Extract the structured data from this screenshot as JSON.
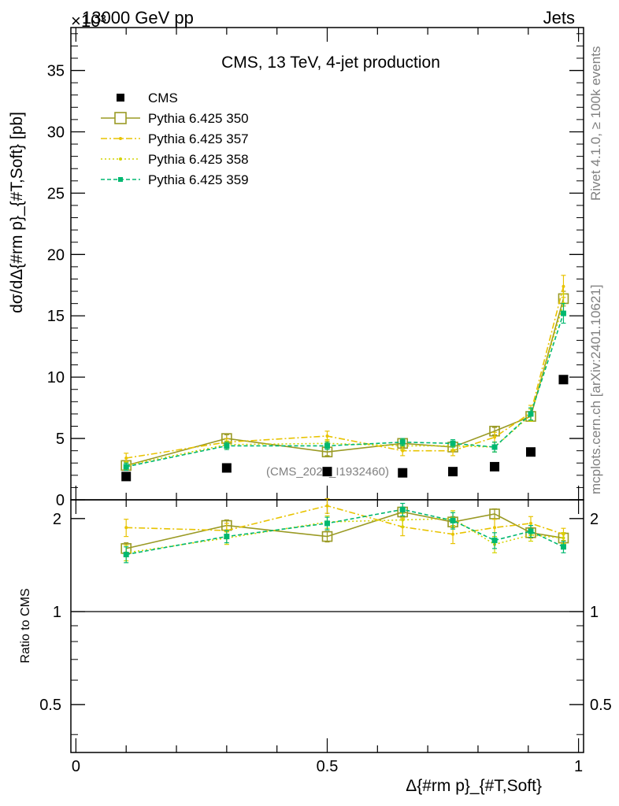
{
  "header": {
    "left": "13000 GeV pp",
    "right": "Jets",
    "exponent": "×10³",
    "source_label": "(CMS_2021_I1932460)",
    "side_top": "Rivet 4.1.0, ≥ 100k events",
    "side_bottom": "mcplots.cern.ch [arXiv:2401.10621]"
  },
  "chart_data": [
    {
      "type": "scatter",
      "panel": "main",
      "title": "CMS, 13 TeV, 4-jet production",
      "ylabel": "dσ/dΔ{#rm p}_{#T,Soft} [pb]",
      "y_exponent": "×10³",
      "xlim": [
        -0.01,
        1.01
      ],
      "ylim": [
        0,
        38.5
      ],
      "yticks": [
        0,
        5,
        10,
        15,
        20,
        25,
        30,
        35
      ],
      "x": [
        0.1,
        0.3,
        0.5,
        0.65,
        0.75,
        0.833,
        0.905,
        0.97
      ],
      "series": [
        {
          "name": "CMS",
          "style": "data",
          "color": "#000000",
          "values": [
            1.9,
            2.6,
            2.3,
            2.2,
            2.3,
            2.7,
            3.9,
            9.8
          ]
        },
        {
          "name": "Pythia 6.425 350",
          "style": "solid-open-square",
          "color": "#9a9a24",
          "values": [
            2.8,
            5.0,
            3.9,
            4.6,
            4.3,
            5.6,
            6.8,
            16.4
          ],
          "errors": [
            0.3,
            0.3,
            0.3,
            0.3,
            0.3,
            0.3,
            0.3,
            0.6
          ]
        },
        {
          "name": "Pythia 6.425 357",
          "style": "dashdot",
          "color": "#e8c300",
          "values": [
            3.4,
            4.7,
            5.2,
            4.0,
            4.0,
            5.1,
            7.1,
            17.4
          ],
          "errors": [
            0.4,
            0.3,
            0.4,
            0.4,
            0.4,
            0.4,
            0.6,
            0.9
          ]
        },
        {
          "name": "Pythia 6.425 358",
          "style": "dotted",
          "color": "#d4d400",
          "values": [
            2.8,
            4.5,
            4.6,
            4.4,
            4.4,
            4.3,
            6.9,
            16.0
          ],
          "errors": [
            0.3,
            0.3,
            0.3,
            0.3,
            0.3,
            0.4,
            0.5,
            0.8
          ]
        },
        {
          "name": "Pythia 6.425 359",
          "style": "dashed-square",
          "color": "#00b870",
          "values": [
            2.7,
            4.4,
            4.4,
            4.7,
            4.6,
            4.3,
            7.0,
            15.2
          ],
          "errors": [
            0.3,
            0.3,
            0.3,
            0.3,
            0.3,
            0.4,
            0.5,
            0.8
          ]
        }
      ]
    },
    {
      "type": "scatter",
      "panel": "ratio",
      "ylabel": "Ratio to CMS",
      "xlabel": "Δ{#rm p}_{#T,Soft}",
      "yscale": "log",
      "ylim": [
        0.35,
        2.3
      ],
      "yticks": [
        0.5,
        1,
        2
      ],
      "ytick_labels": [
        "0.5",
        "1",
        "2"
      ],
      "xticks": [
        0,
        0.5,
        1
      ],
      "xtick_labels": [
        "0",
        "0.5",
        "1"
      ],
      "x": [
        0.1,
        0.3,
        0.5,
        0.65,
        0.75,
        0.833,
        0.905,
        0.97
      ],
      "series": [
        {
          "name": "Pythia 6.425 350",
          "style": "solid-open-square",
          "color": "#9a9a24",
          "values": [
            1.6,
            1.9,
            1.75,
            2.1,
            1.95,
            2.07,
            1.8,
            1.73
          ],
          "errors": [
            0.07,
            0.08,
            0.07,
            0.08,
            0.08,
            0.08,
            0.07,
            0.07
          ]
        },
        {
          "name": "Pythia 6.425 357",
          "style": "dashdot",
          "color": "#e8c300",
          "values": [
            1.87,
            1.83,
            2.2,
            1.88,
            1.78,
            1.87,
            1.93,
            1.78
          ],
          "errors": [
            0.12,
            0.1,
            0.12,
            0.12,
            0.12,
            0.12,
            0.1,
            0.08
          ]
        },
        {
          "name": "Pythia 6.425 358",
          "style": "dotted",
          "color": "#d4d400",
          "values": [
            1.55,
            1.73,
            1.95,
            1.98,
            2.0,
            1.65,
            1.77,
            1.73
          ],
          "errors": [
            0.09,
            0.08,
            0.09,
            0.1,
            0.12,
            0.1,
            0.08,
            0.07
          ]
        },
        {
          "name": "Pythia 6.425 359",
          "style": "dashed-square",
          "color": "#00b870",
          "values": [
            1.53,
            1.75,
            1.93,
            2.14,
            1.97,
            1.7,
            1.82,
            1.62
          ],
          "errors": [
            0.09,
            0.08,
            0.09,
            0.1,
            0.12,
            0.1,
            0.08,
            0.07
          ]
        }
      ]
    }
  ]
}
